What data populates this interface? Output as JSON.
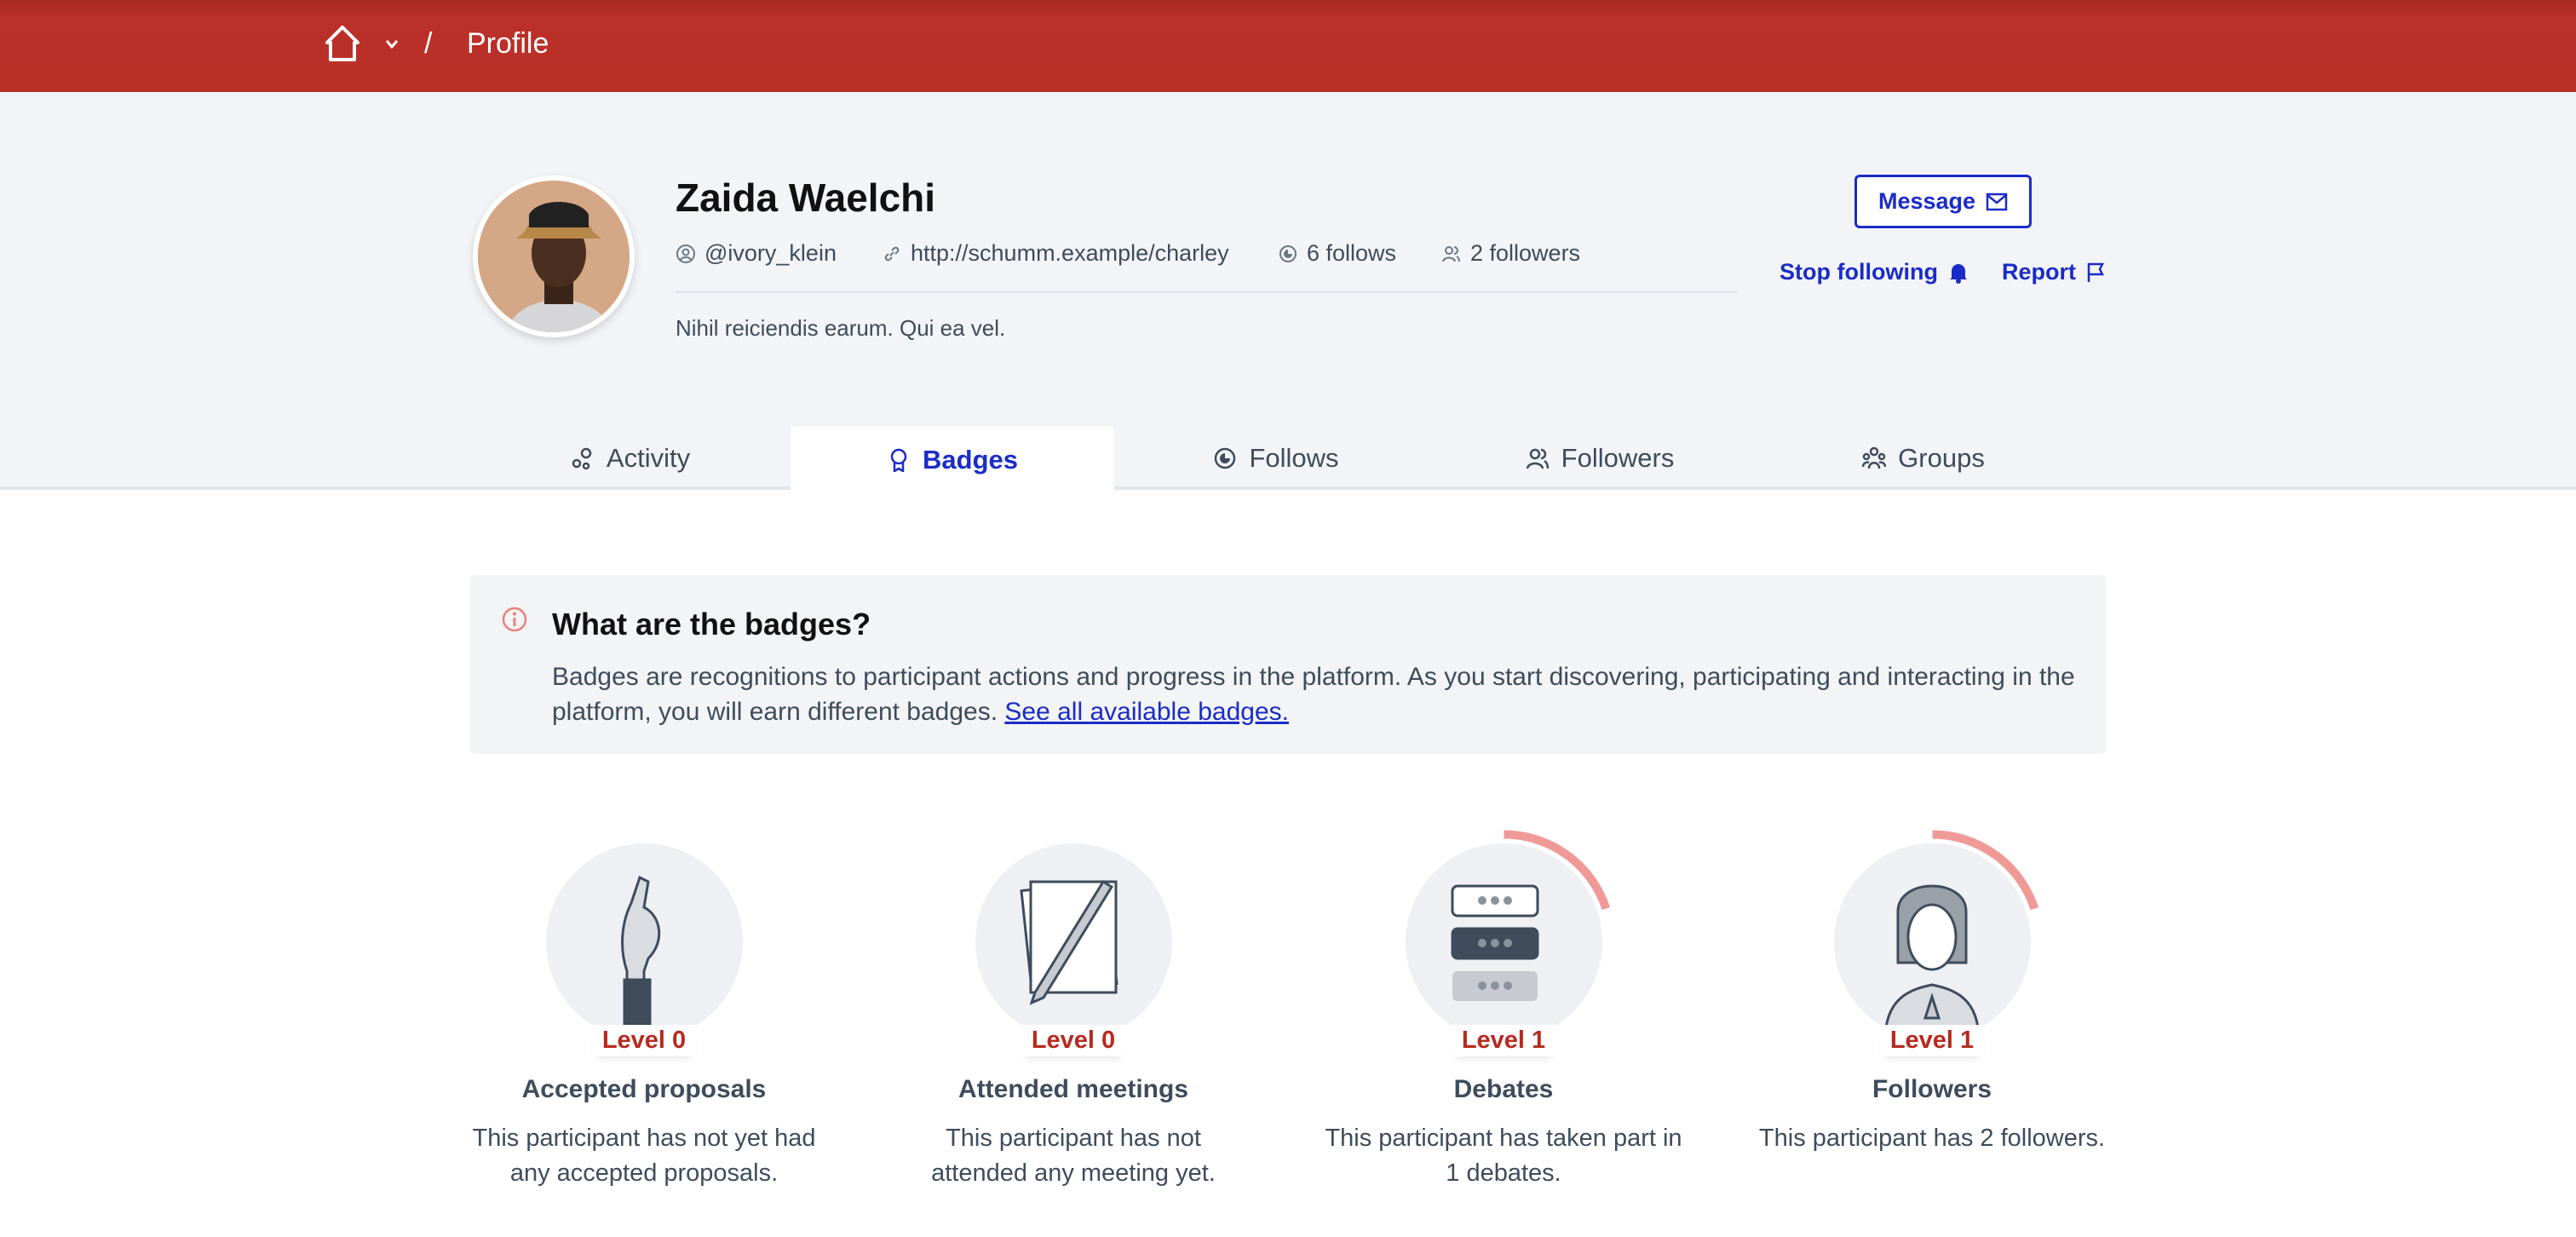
{
  "breadcrumb": {
    "home_icon": "home-icon",
    "dropdown_icon": "chevron-down-icon",
    "separator": "/",
    "current": "Profile"
  },
  "profile": {
    "name": "Zaida Waelchi",
    "nickname": "@ivory_klein",
    "website": "http://schumm.example/charley",
    "follows": "6 follows",
    "followers": "2 followers",
    "bio": "Nihil reiciendis earum. Qui ea vel.",
    "message_label": "Message",
    "stop_following_label": "Stop following",
    "report_label": "Report"
  },
  "tabs": [
    {
      "label": "Activity",
      "icon": "activity-icon"
    },
    {
      "label": "Badges",
      "icon": "badge-icon",
      "active": true
    },
    {
      "label": "Follows",
      "icon": "follows-icon"
    },
    {
      "label": "Followers",
      "icon": "followers-icon"
    },
    {
      "label": "Groups",
      "icon": "groups-icon"
    }
  ],
  "info": {
    "title": "What are the badges?",
    "text": "Badges are recognitions to participant actions and progress in the platform. As you start discovering, participating and interacting in the platform, you will earn different badges. ",
    "link": "See all available badges."
  },
  "badges": [
    {
      "level": "Level 0",
      "title": "Accepted proposals",
      "description": "This participant has not yet had any accepted proposals.",
      "progress": 0
    },
    {
      "level": "Level 0",
      "title": "Attended meetings",
      "description": "This participant has not attended any meeting yet.",
      "progress": 0
    },
    {
      "level": "Level 1",
      "title": "Debates",
      "description": "This participant has taken part in 1 debates.",
      "progress": 0.2
    },
    {
      "level": "Level 1",
      "title": "Followers",
      "description": "This participant has 2 followers.",
      "progress": 0.2
    }
  ],
  "colors": {
    "header": "#b93027",
    "accent": "#1a2cc7",
    "level": "#b72a20",
    "progress_arc": "#f09a98"
  }
}
